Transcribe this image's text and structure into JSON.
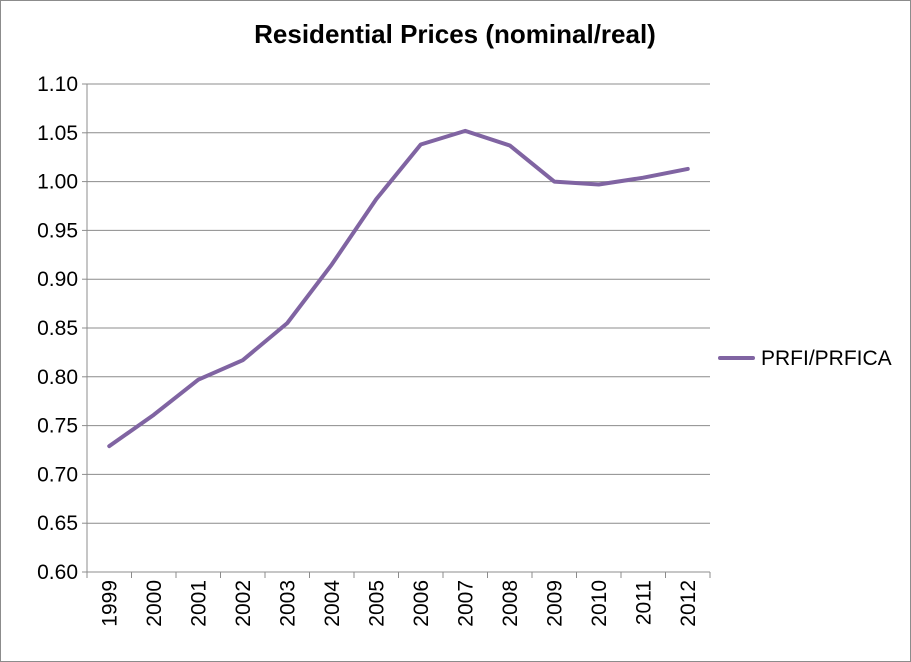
{
  "chart_data": {
    "type": "line",
    "title": "Residential Prices (nominal/real)",
    "xlabel": "",
    "ylabel": "",
    "categories": [
      "1999",
      "2000",
      "2001",
      "2002",
      "2003",
      "2004",
      "2005",
      "2006",
      "2007",
      "2008",
      "2009",
      "2010",
      "2011",
      "2012"
    ],
    "series": [
      {
        "name": "PRFI/PRFICA",
        "color": "#8064a2",
        "values": [
          0.729,
          0.761,
          0.797,
          0.817,
          0.855,
          0.915,
          0.982,
          1.038,
          1.052,
          1.037,
          1.0,
          0.997,
          1.004,
          1.013
        ]
      }
    ],
    "ylim": [
      0.6,
      1.1
    ],
    "yticks": [
      "0.60",
      "0.65",
      "0.70",
      "0.75",
      "0.80",
      "0.85",
      "0.90",
      "0.95",
      "1.00",
      "1.05",
      "1.10"
    ],
    "grid": "horizontal",
    "legend_position": "right"
  }
}
